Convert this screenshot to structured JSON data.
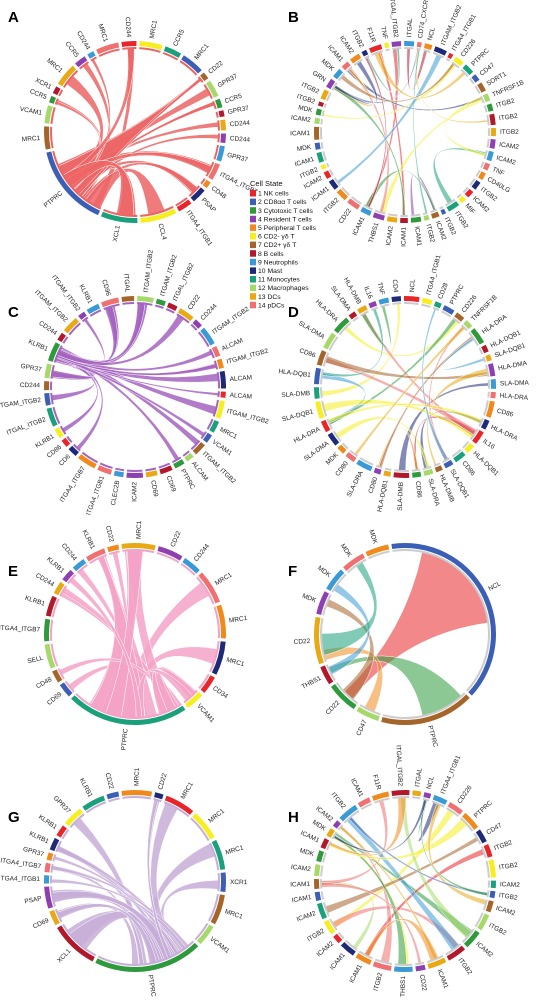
{
  "legend": {
    "title": "Cell State",
    "items": [
      {
        "label": "1 NK cells",
        "color": "#e8262a"
      },
      {
        "label": "2 CD8αα T cells",
        "color": "#3b5fb5"
      },
      {
        "label": "3 Cytotoxic T cells",
        "color": "#2e9a3c"
      },
      {
        "label": "4 Resident T cells",
        "color": "#8e3fb0"
      },
      {
        "label": "5 Peripheral T cells",
        "color": "#f08a1c"
      },
      {
        "label": "6 CD2- γδ T",
        "color": "#f6ee1f"
      },
      {
        "label": "7 CD2+ γδ T",
        "color": "#a5652a"
      },
      {
        "label": "8 B cells",
        "color": "#b2182b"
      },
      {
        "label": "9 Neutrophils",
        "color": "#3a9ad6"
      },
      {
        "label": "10 Mast",
        "color": "#1e2a78"
      },
      {
        "label": "11 Monocytes",
        "color": "#1aa07a"
      },
      {
        "label": "12 Macrophages",
        "color": "#a6d96a"
      },
      {
        "label": "13 DCs",
        "color": "#e8a915"
      },
      {
        "label": "14 pDCs",
        "color": "#f07070"
      }
    ]
  },
  "panels": [
    {
      "letter": "A",
      "chord_color": "#ec6565",
      "labels": [
        "CD244",
        "MRC1",
        "CCR5",
        "MRC1",
        "CD22",
        "GPR37",
        "CCR5",
        "GPR37",
        "CD244",
        "CD244",
        "GPR37",
        "ITGA4_ITGB7",
        "CD48",
        "PSAP",
        "ITGA4_ITGB1",
        "CCL4",
        "XCL1",
        "PTPRC",
        "MRC1",
        "VCAM1",
        "CCR5",
        "XCR1",
        "MRC1",
        "CCR5",
        "CD244",
        "MRC1"
      ]
    },
    {
      "letter": "B",
      "chord_color": "mixed",
      "labels": [
        "ITGAL_ITGB2",
        "ITGAL",
        "CD74_CXCR4",
        "NCL",
        "ITGAM_ITGB2",
        "ITGA4_ITGB1",
        "CD226",
        "PTPRC",
        "CD47",
        "SORT1",
        "TNFRSF1B",
        "ITGB2",
        "ITGB2",
        "ITGB2",
        "ICAM2",
        "ICAM2",
        "TNF",
        "CD40LG",
        "ITGB2",
        "ICAM2",
        "MIF",
        "ITGB2",
        "ITGB2",
        "ICAM2",
        "ITGB2",
        "ICAM1",
        "ICAM1",
        "ICAM2",
        "THBS1",
        "ICAM1",
        "CD22",
        "ITGB2",
        "ICAM1",
        "ICAM2",
        "ITGB2",
        "ICAM1",
        "MDK",
        "ICAM1",
        "ICAM2",
        "MDK",
        "ITGB2",
        "ITGB2",
        "GRN",
        "MDK",
        "ICAM1",
        "ICAM2",
        "ITGB2",
        "F11R",
        "TNF"
      ]
    },
    {
      "letter": "C",
      "chord_color": "#a564c0",
      "labels": [
        "ITGAL",
        "ITGAM_ITGB2",
        "ITGAM_ITGB2",
        "ITGAL_ITGB2",
        "CD22",
        "CD244",
        "ITGAM_ITGB2",
        "ALCAM",
        "ITGAM_ITGB2",
        "ALCAM",
        "ALCAM",
        "ITGAM_ITGB2",
        "MRC1",
        "VCAM1",
        "ITGAM_ITGB2",
        "ALCAM",
        "PTPRC",
        "CD69",
        "CD69",
        "ICAM2",
        "CLEC2B",
        "ITGA4_ITGB1",
        "ITGA4_ITGB7",
        "CD6",
        "CD86",
        "KLRB1",
        "ITGAL_ITGB2",
        "ITGAM_ITGB2",
        "CD244",
        "GPR37",
        "KLRB1",
        "CD244",
        "ITGAM_ITGB2",
        "ITGAM_ITGB2",
        "KLRB1",
        "CD96"
      ]
    },
    {
      "letter": "D",
      "chord_color": "mixed",
      "labels": [
        "CD4",
        "NCL",
        "ITGA4_ITGB1",
        "CD28",
        "PTPRC",
        "CD226",
        "TNFRSF1B",
        "HLA-DRA",
        "HLA-DQB1",
        "SLA-DQB1",
        "HLA-DMA",
        "SLA-DMA",
        "HLA-DRA",
        "CD86",
        "HLA-DRA",
        "IL16",
        "HLA-DQB1",
        "CD86",
        "SLA-DQB1",
        "HLA-DMB",
        "SLA-DRA",
        "CD86",
        "SLA-DMB",
        "HLA-DQB1",
        "CD80",
        "SLA-DRA",
        "CD80",
        "MDK",
        "SLA-DMA",
        "HLA-DRA",
        "SLA-DQB1",
        "SLA-DMB",
        "HLA-DQB1",
        "CD86",
        "SLA-DMA",
        "HLA-DRA",
        "SLA-DMA",
        "HLA-DMB",
        "IL16",
        "TNF"
      ]
    },
    {
      "letter": "E",
      "chord_color": "#f3a3c7",
      "labels": [
        "MRC1",
        "CD22",
        "CD244",
        "MRC1",
        "MRC1",
        "MRC1",
        "CD34",
        "VCAM1",
        "PTPRC",
        "CD69",
        "CD48",
        "SELL",
        "ITGA4_ITGB7",
        "KLRB1",
        "CD244",
        "KLRB1",
        "CD244",
        "KLRB1",
        "CD22"
      ]
    },
    {
      "letter": "F",
      "chord_color": "mixed",
      "labels": [
        "NCL",
        "PTPRC",
        "CD47",
        "CD22",
        "THBS1",
        "CD22",
        "MDK",
        "MDK",
        "MDK",
        "MDK"
      ]
    },
    {
      "letter": "G",
      "chord_color": "#c7aed8",
      "labels": [
        "MRC1",
        "CD22",
        "MRC1",
        "MRC1",
        "MRC1",
        "XCR1",
        "MRC1",
        "VCAM1",
        "PTPRC",
        "XCL1",
        "CD69",
        "PSAP",
        "ITGA4_ITGB1",
        "ITGA4_ITGB7",
        "GPR37",
        "KLRB1",
        "KLRB1",
        "GPR37",
        "KLRB1",
        "CD22"
      ]
    },
    {
      "letter": "H",
      "chord_color": "mixed",
      "labels": [
        "ITGAL_ITGB2",
        "ITGAL",
        "NCL",
        "ITGA4_ITGB1",
        "CD226",
        "PTPRC",
        "CD47",
        "ITGB2",
        "ITGB2",
        "ICAM2",
        "ITGB2",
        "ICAM2",
        "ITGB2",
        "ICAM2",
        "ITGB2",
        "ICAM1",
        "CD22",
        "THBS1",
        "ITGB2",
        "ICAM1",
        "ICAM1",
        "ICAM2",
        "ITGB2",
        "ICAM2",
        "ICAM1",
        "ICAM1",
        "ICAM2",
        "MDK",
        "ICAM1",
        "MDK",
        "ICAM2",
        "ITGB2",
        "ICAM1",
        "F11R"
      ]
    }
  ]
}
